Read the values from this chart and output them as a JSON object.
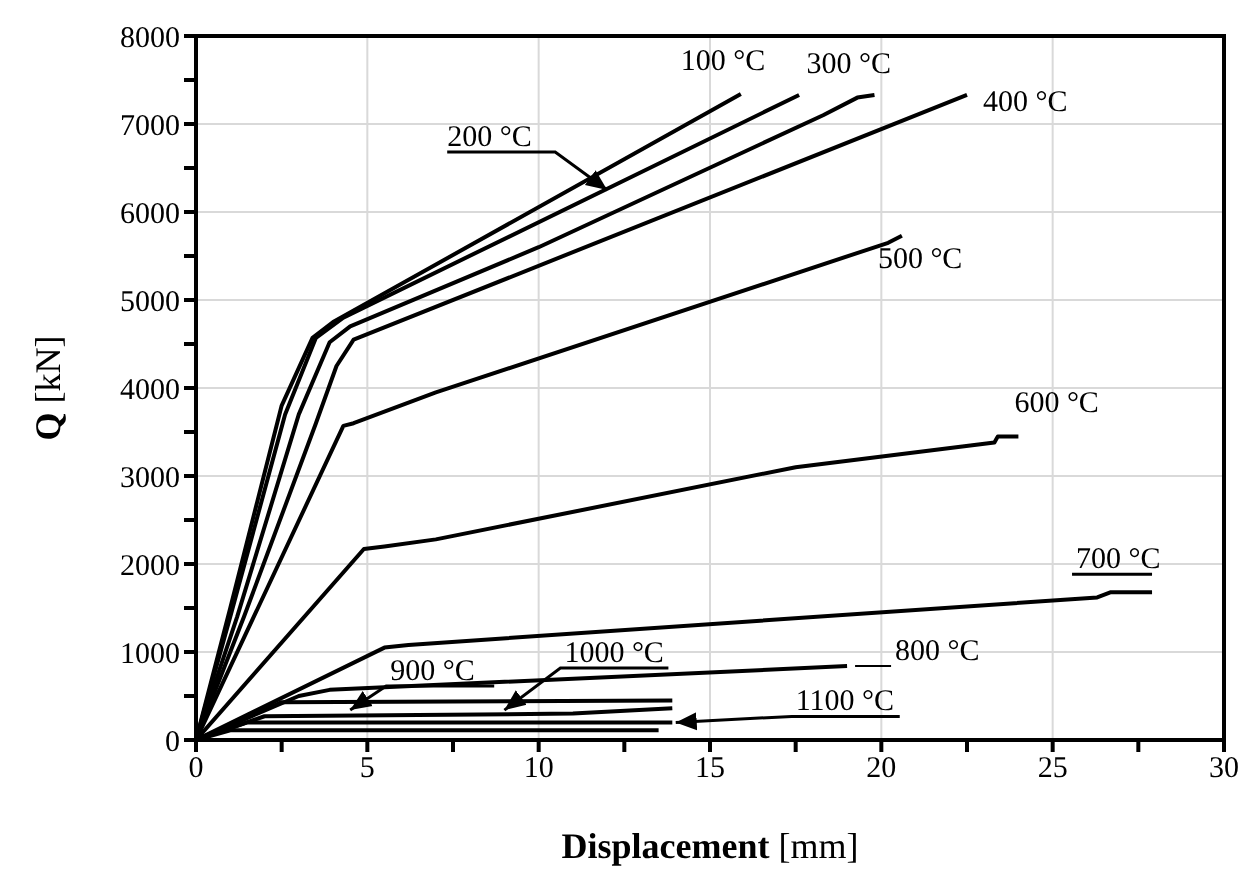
{
  "chart_data": {
    "type": "line",
    "xlabel": "Displacement [mm]",
    "ylabel": "Q [kN]",
    "xlim": [
      0,
      30
    ],
    "ylim": [
      0,
      8000
    ],
    "xticks": [
      0,
      {
        "value": 2.5,
        "label": null
      },
      5,
      {
        "value": 7.5,
        "label": null
      },
      10,
      {
        "value": 12.5,
        "label": null
      },
      15,
      {
        "value": 17.5,
        "label": null
      },
      20,
      {
        "value": 22.5,
        "label": null
      },
      25,
      {
        "value": 27.5,
        "label": null
      },
      30
    ],
    "yticks": [
      0,
      {
        "value": 500,
        "label": null
      },
      1000,
      {
        "value": 1500,
        "label": null
      },
      2000,
      {
        "value": 2500,
        "label": null
      },
      3000,
      {
        "value": 3500,
        "label": null
      },
      4000,
      {
        "value": 4500,
        "label": null
      },
      5000,
      {
        "value": 5500,
        "label": null
      },
      6000,
      {
        "value": 6500,
        "label": null
      },
      7000,
      {
        "value": 7500,
        "label": null
      },
      8000
    ],
    "grid": true,
    "marker": "none",
    "line_style": "solid",
    "series": [
      {
        "color": "#000000",
        "x": [
          0,
          1,
          2.5,
          3.4,
          4,
          15.9
        ],
        "values": [
          0,
          1500,
          3800,
          4570,
          4750,
          7340
        ]
      },
      {
        "color": "#000000",
        "x": [
          0,
          1,
          2.6,
          3.5,
          4.3,
          17.6
        ],
        "values": [
          0,
          1400,
          3700,
          4570,
          4800,
          7330
        ]
      },
      {
        "color": "#000000",
        "x": [
          0,
          1.2,
          3,
          3.9,
          4.5,
          10,
          18.3,
          19.3,
          19.8
        ],
        "values": [
          0,
          1400,
          3700,
          4520,
          4700,
          5600,
          7100,
          7300,
          7330
        ]
      },
      {
        "color": "#000000",
        "x": [
          0,
          1.4,
          3.5,
          4.1,
          4.6,
          22.5
        ],
        "values": [
          0,
          1400,
          3600,
          4250,
          4550,
          7330
        ]
      },
      {
        "color": "#000000",
        "x": [
          0,
          4.3,
          4.6,
          7,
          20.2,
          20.6
        ],
        "values": [
          0,
          3570,
          3600,
          3950,
          5650,
          5730
        ]
      },
      {
        "color": "#000000",
        "x": [
          0,
          4.9,
          5.5,
          7,
          17.5,
          23.3,
          23.4,
          24
        ],
        "values": [
          0,
          2170,
          2200,
          2280,
          3100,
          3380,
          3450,
          3450
        ]
      },
      {
        "color": "#000000",
        "x": [
          0,
          5.5,
          6.2,
          26.3,
          26.7,
          27.9
        ],
        "values": [
          0,
          1050,
          1080,
          1620,
          1680,
          1680
        ]
      },
      {
        "color": "#000000",
        "x": [
          0,
          3,
          3.9,
          19
        ],
        "values": [
          0,
          500,
          570,
          840
        ]
      },
      {
        "color": "#000000",
        "x": [
          0,
          2.5,
          13.9
        ],
        "values": [
          0,
          430,
          450
        ]
      },
      {
        "color": "#000000",
        "x": [
          0,
          2,
          11,
          13.9
        ],
        "values": [
          0,
          270,
          300,
          360
        ]
      },
      {
        "color": "#000000",
        "x": [
          0,
          1.5,
          13.9
        ],
        "values": [
          0,
          200,
          200
        ]
      },
      {
        "color": "#000000",
        "x": [
          0,
          1,
          13.5
        ],
        "values": [
          0,
          110,
          110
        ]
      }
    ],
    "annotations": [
      {
        "text": "100 °C",
        "x": 15.9,
        "y": 7340
      },
      {
        "text": "200 °C",
        "x": 12,
        "y": 6250
      },
      {
        "text": "300 °C",
        "x": 19.8,
        "y": 7330
      },
      {
        "text": "400 °C",
        "x": 22.5,
        "y": 7330
      },
      {
        "text": "500 °C",
        "x": 20.6,
        "y": 5730
      },
      {
        "text": "600 °C",
        "x": 24,
        "y": 3450
      },
      {
        "text": "700 °C",
        "x": 27.9,
        "y": 1680
      },
      {
        "text": "800 °C",
        "x": 19,
        "y": 840
      },
      {
        "text": "900 °C",
        "x": 4.5,
        "y": 340
      },
      {
        "text": "1000 °C",
        "x": 9,
        "y": 340
      },
      {
        "text": "1100 °C",
        "x": 14,
        "y": 200
      }
    ]
  }
}
